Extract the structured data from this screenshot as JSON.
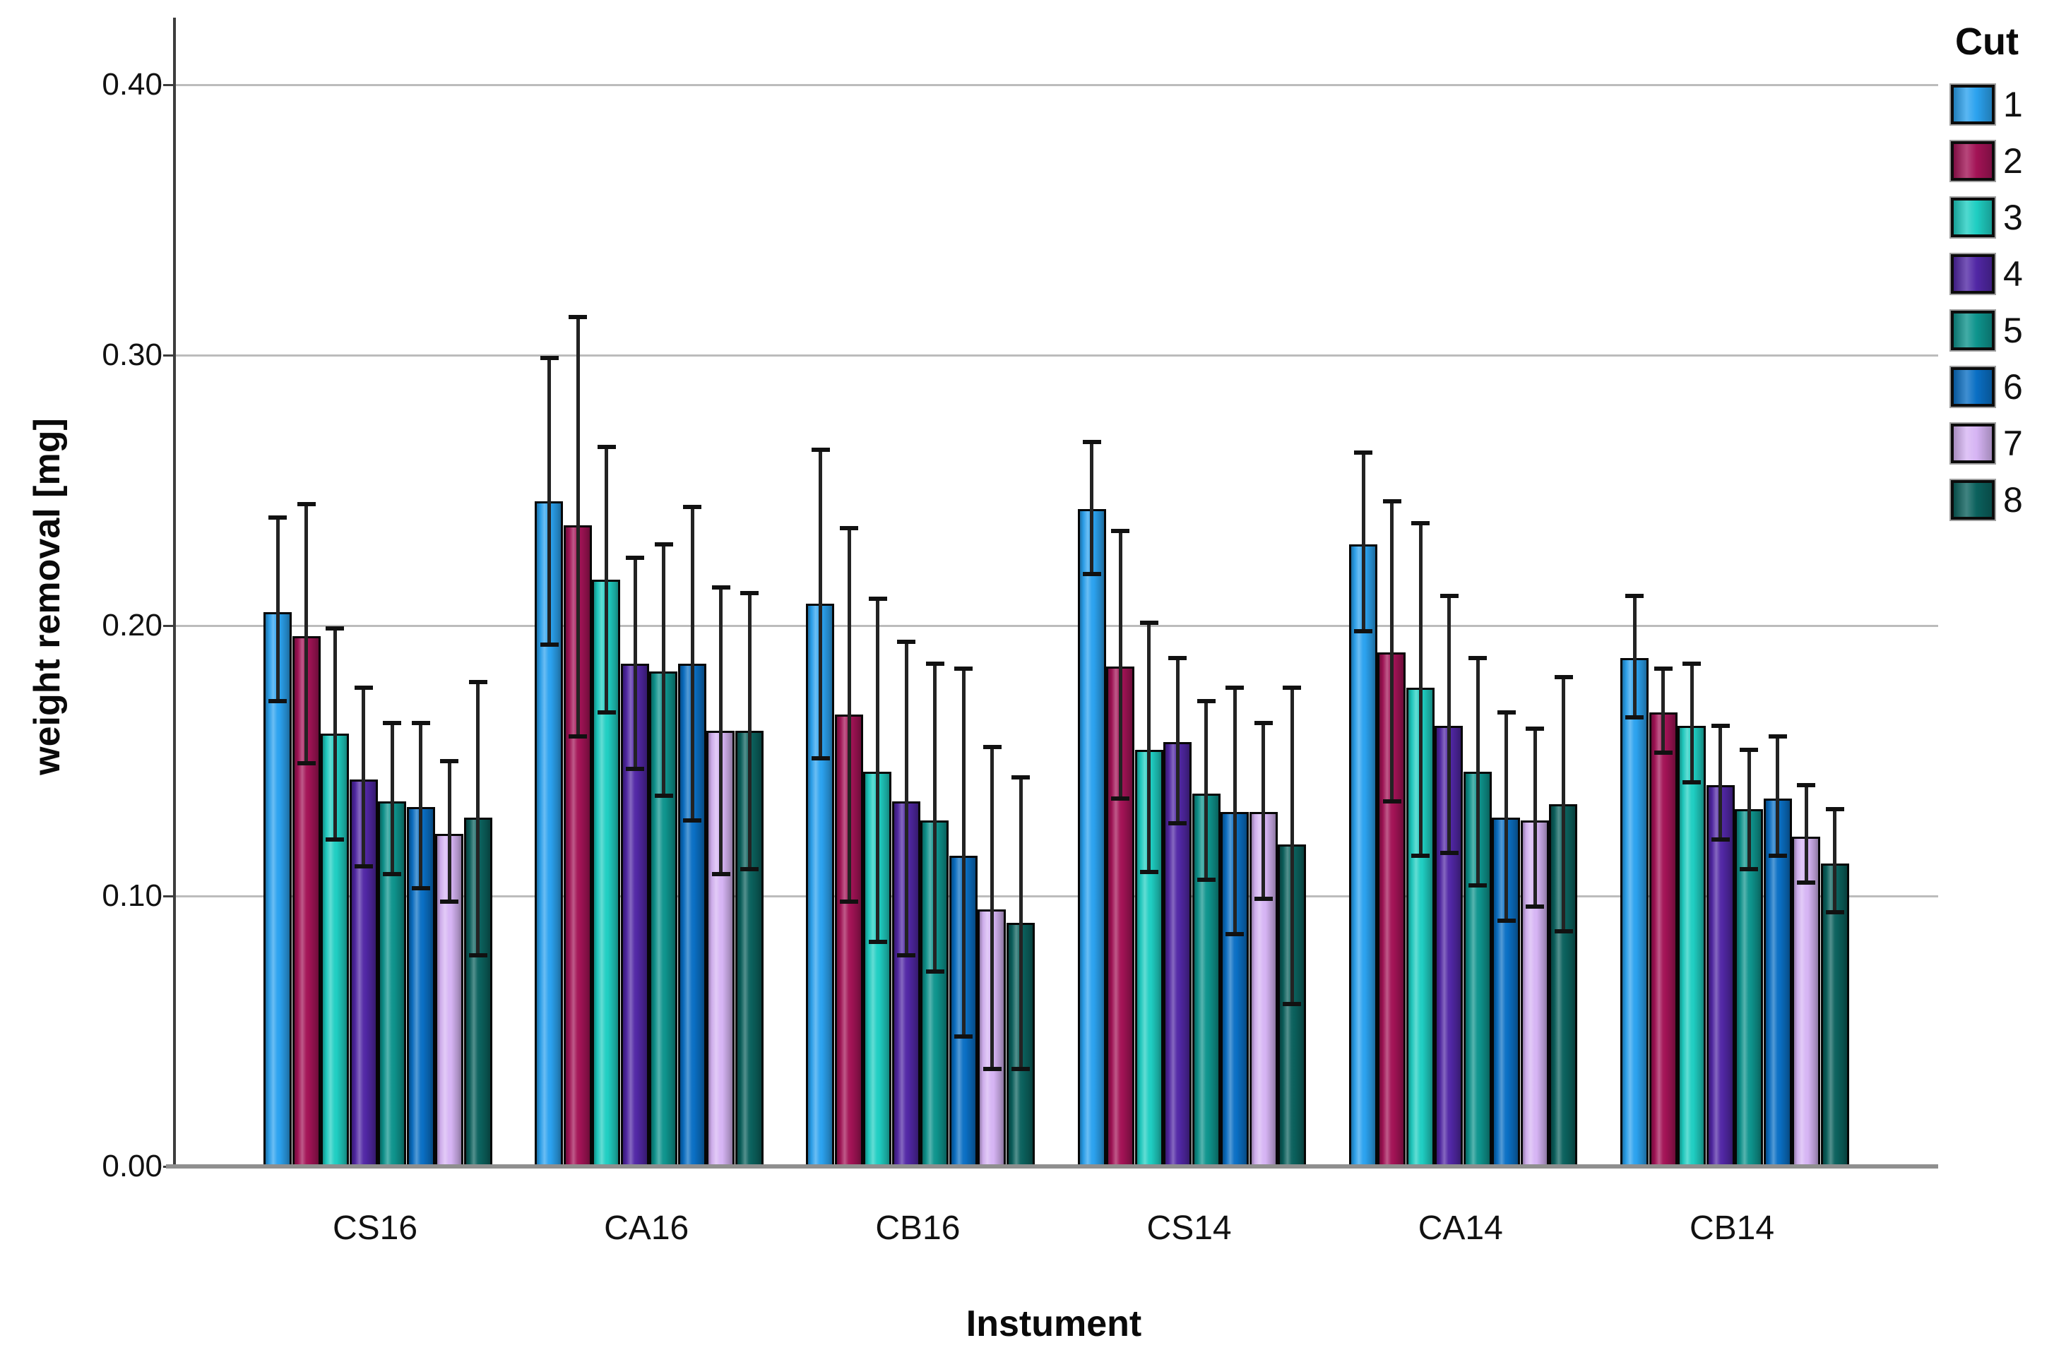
{
  "figure": {
    "ylabel": "weight removal [mg]",
    "xlabel": "Instument",
    "legend_title": "Cut"
  },
  "chart_data": {
    "type": "bar",
    "title": "",
    "xlabel": "Instument",
    "ylabel": "weight removal [mg]",
    "ylim": [
      0,
      0.425
    ],
    "grid": true,
    "legend_position": "top-right",
    "error_bars": true,
    "yticks": [
      {
        "label": "0.00",
        "value": 0.0
      },
      {
        "label": "0.10",
        "value": 0.1
      },
      {
        "label": "0.20",
        "value": 0.2
      },
      {
        "label": "0.30",
        "value": 0.3
      },
      {
        "label": "0.40",
        "value": 0.4
      }
    ],
    "categories": [
      "CS16",
      "CA16",
      "CB16",
      "CS14",
      "CA14",
      "CB14"
    ],
    "series": [
      {
        "name": "1",
        "color": "#2BA2EF",
        "values": [
          0.205,
          0.246,
          0.208,
          0.243,
          0.23,
          0.188
        ],
        "err_high": [
          0.24,
          0.299,
          0.265,
          0.268,
          0.264,
          0.211
        ],
        "err_low": [
          0.172,
          0.193,
          0.151,
          0.219,
          0.198,
          0.166
        ]
      },
      {
        "name": "2",
        "color": "#A31356",
        "values": [
          0.196,
          0.237,
          0.167,
          0.185,
          0.19,
          0.168
        ],
        "err_high": [
          0.245,
          0.314,
          0.236,
          0.235,
          0.246,
          0.184
        ],
        "err_low": [
          0.149,
          0.159,
          0.098,
          0.136,
          0.135,
          0.153
        ]
      },
      {
        "name": "3",
        "color": "#1FCEC2",
        "values": [
          0.16,
          0.217,
          0.146,
          0.154,
          0.177,
          0.163
        ],
        "err_high": [
          0.199,
          0.266,
          0.21,
          0.201,
          0.238,
          0.186
        ],
        "err_low": [
          0.121,
          0.168,
          0.083,
          0.109,
          0.115,
          0.142
        ]
      },
      {
        "name": "4",
        "color": "#5127A5",
        "values": [
          0.143,
          0.186,
          0.135,
          0.157,
          0.163,
          0.141
        ],
        "err_high": [
          0.177,
          0.225,
          0.194,
          0.188,
          0.211,
          0.163
        ],
        "err_low": [
          0.111,
          0.147,
          0.078,
          0.127,
          0.116,
          0.121
        ]
      },
      {
        "name": "5",
        "color": "#0E948D",
        "values": [
          0.135,
          0.183,
          0.128,
          0.138,
          0.146,
          0.132
        ],
        "err_high": [
          0.164,
          0.23,
          0.186,
          0.172,
          0.188,
          0.154
        ],
        "err_low": [
          0.108,
          0.137,
          0.072,
          0.106,
          0.104,
          0.11
        ]
      },
      {
        "name": "6",
        "color": "#0A6FC4",
        "values": [
          0.133,
          0.186,
          0.115,
          0.131,
          0.129,
          0.136
        ],
        "err_high": [
          0.164,
          0.244,
          0.184,
          0.177,
          0.168,
          0.159
        ],
        "err_low": [
          0.103,
          0.128,
          0.048,
          0.086,
          0.091,
          0.115
        ]
      },
      {
        "name": "7",
        "color": "#D6B4F4",
        "values": [
          0.123,
          0.161,
          0.095,
          0.131,
          0.128,
          0.122
        ],
        "err_high": [
          0.15,
          0.214,
          0.155,
          0.164,
          0.162,
          0.141
        ],
        "err_low": [
          0.098,
          0.108,
          0.036,
          0.099,
          0.096,
          0.105
        ]
      },
      {
        "name": "8",
        "color": "#0B615D",
        "values": [
          0.129,
          0.161,
          0.09,
          0.119,
          0.134,
          0.112
        ],
        "err_high": [
          0.179,
          0.212,
          0.144,
          0.177,
          0.181,
          0.132
        ],
        "err_low": [
          0.078,
          0.11,
          0.036,
          0.06,
          0.087,
          0.094
        ]
      }
    ]
  }
}
